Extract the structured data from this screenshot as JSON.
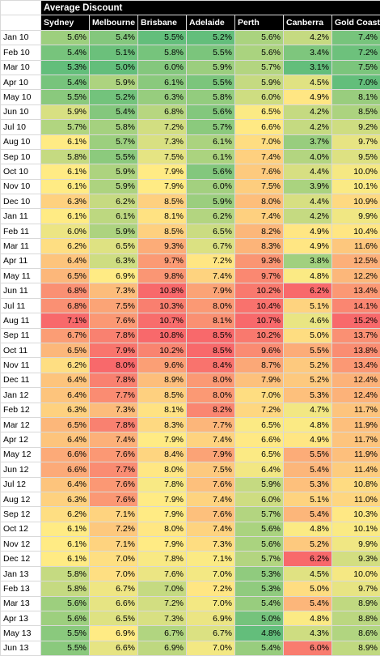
{
  "chart_data": {
    "type": "heatmap",
    "title": "Average Discount",
    "columns": [
      "Sydney",
      "Melbourne",
      "Brisbane",
      "Adelaide",
      "Perth",
      "Canberra",
      "Gold Coast"
    ],
    "rows": [
      {
        "label": "Jan 10",
        "values": [
          "5.6%",
          "5.4%",
          "5.5%",
          "5.2%",
          "5.6%",
          "4.2%",
          "7.4%"
        ]
      },
      {
        "label": "Feb 10",
        "values": [
          "5.4%",
          "5.1%",
          "5.8%",
          "5.5%",
          "5.6%",
          "3.4%",
          "7.2%"
        ]
      },
      {
        "label": "Mar 10",
        "values": [
          "5.3%",
          "5.0%",
          "6.0%",
          "5.9%",
          "5.7%",
          "3.1%",
          "7.5%"
        ]
      },
      {
        "label": "Apr 10",
        "values": [
          "5.4%",
          "5.9%",
          "6.1%",
          "5.5%",
          "5.9%",
          "4.5%",
          "7.0%"
        ]
      },
      {
        "label": "May 10",
        "values": [
          "5.5%",
          "5.2%",
          "6.3%",
          "5.8%",
          "6.0%",
          "4.9%",
          "8.1%"
        ]
      },
      {
        "label": "Jun 10",
        "values": [
          "5.9%",
          "5.4%",
          "6.8%",
          "5.6%",
          "6.5%",
          "4.2%",
          "8.5%"
        ]
      },
      {
        "label": "Jul 10",
        "values": [
          "5.7%",
          "5.8%",
          "7.2%",
          "5.7%",
          "6.6%",
          "4.2%",
          "9.2%"
        ]
      },
      {
        "label": "Aug 10",
        "values": [
          "6.1%",
          "5.7%",
          "7.3%",
          "6.1%",
          "7.0%",
          "3.7%",
          "9.7%"
        ]
      },
      {
        "label": "Sep 10",
        "values": [
          "5.8%",
          "5.5%",
          "7.5%",
          "6.1%",
          "7.4%",
          "4.0%",
          "9.5%"
        ]
      },
      {
        "label": "Oct 10",
        "values": [
          "6.1%",
          "5.9%",
          "7.9%",
          "5.6%",
          "7.6%",
          "4.4%",
          "10.0%"
        ]
      },
      {
        "label": "Nov 10",
        "values": [
          "6.1%",
          "5.9%",
          "7.9%",
          "6.0%",
          "7.5%",
          "3.9%",
          "10.1%"
        ]
      },
      {
        "label": "Dec 10",
        "values": [
          "6.3%",
          "6.2%",
          "8.5%",
          "5.9%",
          "8.0%",
          "4.4%",
          "10.9%"
        ]
      },
      {
        "label": "Jan 11",
        "values": [
          "6.1%",
          "6.1%",
          "8.1%",
          "6.2%",
          "7.4%",
          "4.2%",
          "9.9%"
        ]
      },
      {
        "label": "Feb 11",
        "values": [
          "6.0%",
          "5.9%",
          "8.5%",
          "6.5%",
          "8.2%",
          "4.9%",
          "10.4%"
        ]
      },
      {
        "label": "Mar 11",
        "values": [
          "6.2%",
          "6.5%",
          "9.3%",
          "6.7%",
          "8.3%",
          "4.9%",
          "11.6%"
        ]
      },
      {
        "label": "Apr 11",
        "values": [
          "6.4%",
          "6.3%",
          "9.7%",
          "7.2%",
          "9.3%",
          "3.8%",
          "12.5%"
        ]
      },
      {
        "label": "May 11",
        "values": [
          "6.5%",
          "6.9%",
          "9.8%",
          "7.4%",
          "9.7%",
          "4.8%",
          "12.2%"
        ]
      },
      {
        "label": "Jun 11",
        "values": [
          "6.8%",
          "7.3%",
          "10.8%",
          "7.9%",
          "10.2%",
          "6.2%",
          "13.4%"
        ]
      },
      {
        "label": "Jul 11",
        "values": [
          "6.8%",
          "7.5%",
          "10.3%",
          "8.0%",
          "10.4%",
          "5.1%",
          "14.1%"
        ]
      },
      {
        "label": "Aug 11",
        "values": [
          "7.1%",
          "7.6%",
          "10.7%",
          "8.1%",
          "10.7%",
          "4.6%",
          "15.2%"
        ]
      },
      {
        "label": "Sep 11",
        "values": [
          "6.7%",
          "7.8%",
          "10.8%",
          "8.5%",
          "10.2%",
          "5.0%",
          "13.7%"
        ]
      },
      {
        "label": "Oct 11",
        "values": [
          "6.5%",
          "7.9%",
          "10.2%",
          "8.5%",
          "9.6%",
          "5.5%",
          "13.8%"
        ]
      },
      {
        "label": "Nov 11",
        "values": [
          "6.2%",
          "8.0%",
          "9.6%",
          "8.4%",
          "8.7%",
          "5.2%",
          "13.4%"
        ]
      },
      {
        "label": "Dec 11",
        "values": [
          "6.4%",
          "7.8%",
          "8.9%",
          "8.0%",
          "7.9%",
          "5.2%",
          "12.4%"
        ]
      },
      {
        "label": "Jan 12",
        "values": [
          "6.4%",
          "7.7%",
          "8.5%",
          "8.0%",
          "7.0%",
          "5.3%",
          "12.4%"
        ]
      },
      {
        "label": "Feb 12",
        "values": [
          "6.3%",
          "7.3%",
          "8.1%",
          "8.2%",
          "7.2%",
          "4.7%",
          "11.7%"
        ]
      },
      {
        "label": "Mar 12",
        "values": [
          "6.5%",
          "7.8%",
          "8.3%",
          "7.7%",
          "6.5%",
          "4.8%",
          "11.9%"
        ]
      },
      {
        "label": "Apr 12",
        "values": [
          "6.4%",
          "7.4%",
          "7.9%",
          "7.4%",
          "6.6%",
          "4.9%",
          "11.7%"
        ]
      },
      {
        "label": "May 12",
        "values": [
          "6.6%",
          "7.6%",
          "8.4%",
          "7.9%",
          "6.5%",
          "5.5%",
          "11.9%"
        ]
      },
      {
        "label": "Jun 12",
        "values": [
          "6.6%",
          "7.7%",
          "8.0%",
          "7.5%",
          "6.4%",
          "5.4%",
          "11.4%"
        ]
      },
      {
        "label": "Jul 12",
        "values": [
          "6.4%",
          "7.6%",
          "7.8%",
          "7.6%",
          "5.9%",
          "5.3%",
          "10.8%"
        ]
      },
      {
        "label": "Aug 12",
        "values": [
          "6.3%",
          "7.6%",
          "7.9%",
          "7.4%",
          "6.0%",
          "5.1%",
          "11.0%"
        ]
      },
      {
        "label": "Sep 12",
        "values": [
          "6.2%",
          "7.1%",
          "7.9%",
          "7.6%",
          "5.7%",
          "5.4%",
          "10.3%"
        ]
      },
      {
        "label": "Oct 12",
        "values": [
          "6.1%",
          "7.2%",
          "8.0%",
          "7.4%",
          "5.6%",
          "4.8%",
          "10.1%"
        ]
      },
      {
        "label": "Nov 12",
        "values": [
          "6.1%",
          "7.1%",
          "7.9%",
          "7.3%",
          "5.6%",
          "5.2%",
          "9.9%"
        ]
      },
      {
        "label": "Dec 12",
        "values": [
          "6.1%",
          "7.0%",
          "7.8%",
          "7.1%",
          "5.7%",
          "6.2%",
          "9.3%"
        ]
      },
      {
        "label": "Jan 13",
        "values": [
          "5.8%",
          "7.0%",
          "7.6%",
          "7.0%",
          "5.3%",
          "4.5%",
          "10.0%"
        ]
      },
      {
        "label": "Feb 13",
        "values": [
          "5.8%",
          "6.7%",
          "7.0%",
          "7.2%",
          "5.3%",
          "5.0%",
          "9.7%"
        ]
      },
      {
        "label": "Mar 13",
        "values": [
          "5.6%",
          "6.6%",
          "7.2%",
          "7.0%",
          "5.4%",
          "5.4%",
          "8.9%"
        ]
      },
      {
        "label": "Apr 13",
        "values": [
          "5.6%",
          "6.5%",
          "7.3%",
          "6.9%",
          "5.0%",
          "4.8%",
          "8.8%"
        ]
      },
      {
        "label": "May 13",
        "values": [
          "5.5%",
          "6.9%",
          "6.7%",
          "6.7%",
          "4.8%",
          "4.3%",
          "8.6%"
        ]
      },
      {
        "label": "Jun 13",
        "values": [
          "5.5%",
          "6.6%",
          "6.9%",
          "7.0%",
          "5.4%",
          "6.0%",
          "8.9%"
        ]
      }
    ],
    "color_scale": {
      "low": "#63be7b",
      "mid": "#ffeb84",
      "high": "#f8696b"
    },
    "grid": true,
    "legend": "none"
  }
}
